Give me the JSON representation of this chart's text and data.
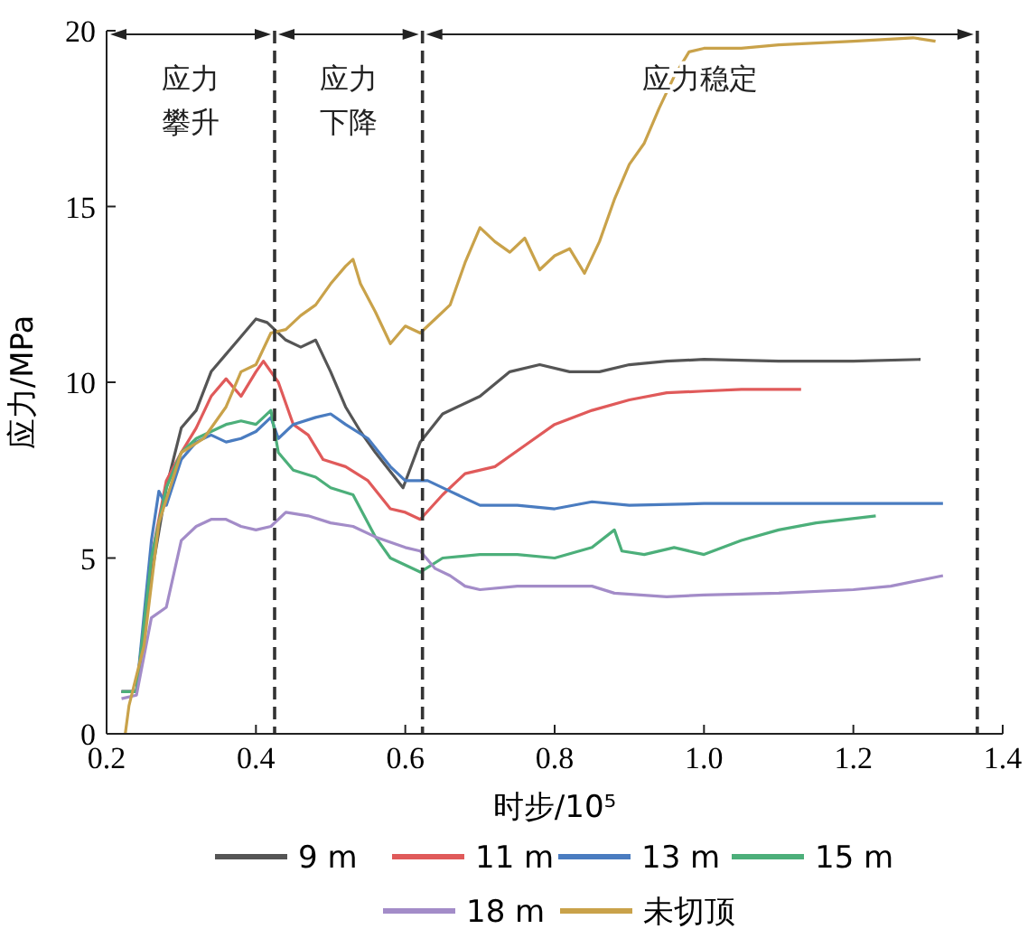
{
  "chart_data": {
    "type": "line",
    "xlabel": "时步/10⁵",
    "ylabel": "应力/MPa",
    "xlim": [
      0.2,
      1.4
    ],
    "xticks": [
      {
        "value": 0.2,
        "label": "0.2"
      },
      {
        "value": 0.4,
        "label": "0.4"
      },
      {
        "value": 0.6,
        "label": "0.6"
      },
      {
        "value": 0.8,
        "label": "0.8"
      },
      {
        "value": 1.0,
        "label": "1.0"
      },
      {
        "value": 1.2,
        "label": "1.2"
      },
      {
        "value": 1.4,
        "label": "1.4"
      }
    ],
    "ylim": [
      0,
      20
    ],
    "yticks": [
      0,
      5,
      10,
      15,
      20
    ],
    "grid": false,
    "legend": "bottom",
    "line_style": "solid",
    "marker": "none",
    "ref_lines": [
      {
        "axis": "x",
        "value": 0.425,
        "color": "#333333",
        "line_style": "dashed"
      },
      {
        "axis": "x",
        "value": 0.623,
        "color": "#333333",
        "line_style": "dashed"
      },
      {
        "axis": "x",
        "value": 1.366,
        "color": "#333333",
        "line_style": "dashed"
      }
    ],
    "annotations": [
      "应力攀升",
      "应力下降",
      "应力稳定"
    ],
    "series": [
      {
        "name": "9 m",
        "color": "#555555",
        "x": [
          0.22,
          0.24,
          0.26,
          0.28,
          0.3,
          0.32,
          0.34,
          0.36,
          0.38,
          0.4,
          0.415,
          0.44,
          0.46,
          0.48,
          0.5,
          0.52,
          0.54,
          0.56,
          0.597,
          0.62,
          0.65,
          0.7,
          0.74,
          0.78,
          0.82,
          0.86,
          0.9,
          0.95,
          1.0,
          1.1,
          1.2,
          1.29
        ],
        "values": [
          1.2,
          1.2,
          4.5,
          7.0,
          8.7,
          9.2,
          10.3,
          10.8,
          11.3,
          11.8,
          11.7,
          11.2,
          11.0,
          11.2,
          10.3,
          9.3,
          8.6,
          8.0,
          7.0,
          8.3,
          9.1,
          9.6,
          10.3,
          10.5,
          10.3,
          10.3,
          10.5,
          10.6,
          10.65,
          10.6,
          10.6,
          10.65
        ]
      },
      {
        "name": "11 m",
        "color": "#e05a5a",
        "x": [
          0.22,
          0.24,
          0.26,
          0.28,
          0.3,
          0.32,
          0.34,
          0.36,
          0.38,
          0.4,
          0.41,
          0.43,
          0.45,
          0.47,
          0.49,
          0.52,
          0.55,
          0.58,
          0.6,
          0.62,
          0.65,
          0.68,
          0.72,
          0.76,
          0.8,
          0.85,
          0.9,
          0.95,
          1.0,
          1.05,
          1.13
        ],
        "values": [
          1.2,
          1.2,
          5.0,
          7.2,
          8.0,
          8.7,
          9.6,
          10.1,
          9.6,
          10.3,
          10.6,
          10.0,
          8.8,
          8.5,
          7.8,
          7.6,
          7.2,
          6.4,
          6.3,
          6.1,
          6.8,
          7.4,
          7.6,
          8.2,
          8.8,
          9.2,
          9.5,
          9.7,
          9.75,
          9.8,
          9.8
        ]
      },
      {
        "name": "13 m",
        "color": "#4a7cc0",
        "x": [
          0.22,
          0.24,
          0.26,
          0.27,
          0.28,
          0.3,
          0.32,
          0.34,
          0.36,
          0.38,
          0.4,
          0.42,
          0.43,
          0.45,
          0.48,
          0.5,
          0.52,
          0.55,
          0.58,
          0.6,
          0.63,
          0.66,
          0.7,
          0.75,
          0.8,
          0.85,
          0.9,
          1.0,
          1.1,
          1.32
        ],
        "values": [
          1.2,
          1.2,
          5.5,
          6.9,
          6.5,
          7.8,
          8.3,
          8.5,
          8.3,
          8.4,
          8.6,
          9.0,
          8.4,
          8.8,
          9.0,
          9.1,
          8.8,
          8.4,
          7.6,
          7.2,
          7.2,
          6.9,
          6.5,
          6.5,
          6.4,
          6.6,
          6.5,
          6.55,
          6.55,
          6.55
        ]
      },
      {
        "name": "15 m",
        "color": "#4caf7a",
        "x": [
          0.22,
          0.24,
          0.26,
          0.28,
          0.3,
          0.32,
          0.34,
          0.36,
          0.38,
          0.4,
          0.42,
          0.43,
          0.45,
          0.48,
          0.5,
          0.53,
          0.56,
          0.58,
          0.6,
          0.62,
          0.65,
          0.7,
          0.75,
          0.8,
          0.85,
          0.88,
          0.89,
          0.92,
          0.96,
          1.0,
          1.05,
          1.1,
          1.15,
          1.23
        ],
        "values": [
          1.2,
          1.2,
          5.0,
          7.0,
          8.0,
          8.4,
          8.6,
          8.8,
          8.9,
          8.8,
          9.2,
          8.0,
          7.5,
          7.3,
          7.0,
          6.8,
          5.6,
          5.0,
          4.8,
          4.6,
          5.0,
          5.1,
          5.1,
          5.0,
          5.3,
          5.8,
          5.2,
          5.1,
          5.3,
          5.1,
          5.5,
          5.8,
          6.0,
          6.2
        ]
      },
      {
        "name": "18 m",
        "color": "#a38cc8",
        "x": [
          0.22,
          0.24,
          0.26,
          0.28,
          0.3,
          0.32,
          0.34,
          0.36,
          0.38,
          0.4,
          0.42,
          0.44,
          0.47,
          0.5,
          0.53,
          0.56,
          0.6,
          0.62,
          0.64,
          0.66,
          0.68,
          0.7,
          0.75,
          0.8,
          0.85,
          0.88,
          0.95,
          1.0,
          1.1,
          1.2,
          1.25,
          1.32
        ],
        "values": [
          1.0,
          1.1,
          3.3,
          3.6,
          5.5,
          5.9,
          6.1,
          6.1,
          5.9,
          5.8,
          5.9,
          6.3,
          6.2,
          6.0,
          5.9,
          5.6,
          5.3,
          5.2,
          4.7,
          4.5,
          4.2,
          4.1,
          4.2,
          4.2,
          4.2,
          4.0,
          3.9,
          3.95,
          4.0,
          4.1,
          4.2,
          4.5
        ]
      },
      {
        "name": "未切顶",
        "color": "#c9a24a",
        "x": [
          0.225,
          0.23,
          0.25,
          0.27,
          0.3,
          0.33,
          0.36,
          0.38,
          0.4,
          0.42,
          0.44,
          0.46,
          0.48,
          0.5,
          0.52,
          0.53,
          0.54,
          0.56,
          0.58,
          0.6,
          0.62,
          0.64,
          0.66,
          0.68,
          0.7,
          0.72,
          0.74,
          0.76,
          0.78,
          0.8,
          0.82,
          0.84,
          0.86,
          0.88,
          0.9,
          0.92,
          0.94,
          0.96,
          0.98,
          1.0,
          1.05,
          1.1,
          1.2,
          1.28,
          1.31
        ],
        "values": [
          0,
          0.8,
          2.5,
          6.0,
          8.0,
          8.4,
          9.3,
          10.3,
          10.5,
          11.4,
          11.5,
          11.9,
          12.2,
          12.8,
          13.3,
          13.5,
          12.8,
          12.0,
          11.1,
          11.6,
          11.4,
          11.8,
          12.2,
          13.4,
          14.4,
          14.0,
          13.7,
          14.1,
          13.2,
          13.6,
          13.8,
          13.1,
          14.0,
          15.2,
          16.2,
          16.8,
          17.8,
          18.7,
          19.4,
          19.5,
          19.5,
          19.6,
          19.7,
          19.8,
          19.7
        ]
      }
    ]
  }
}
